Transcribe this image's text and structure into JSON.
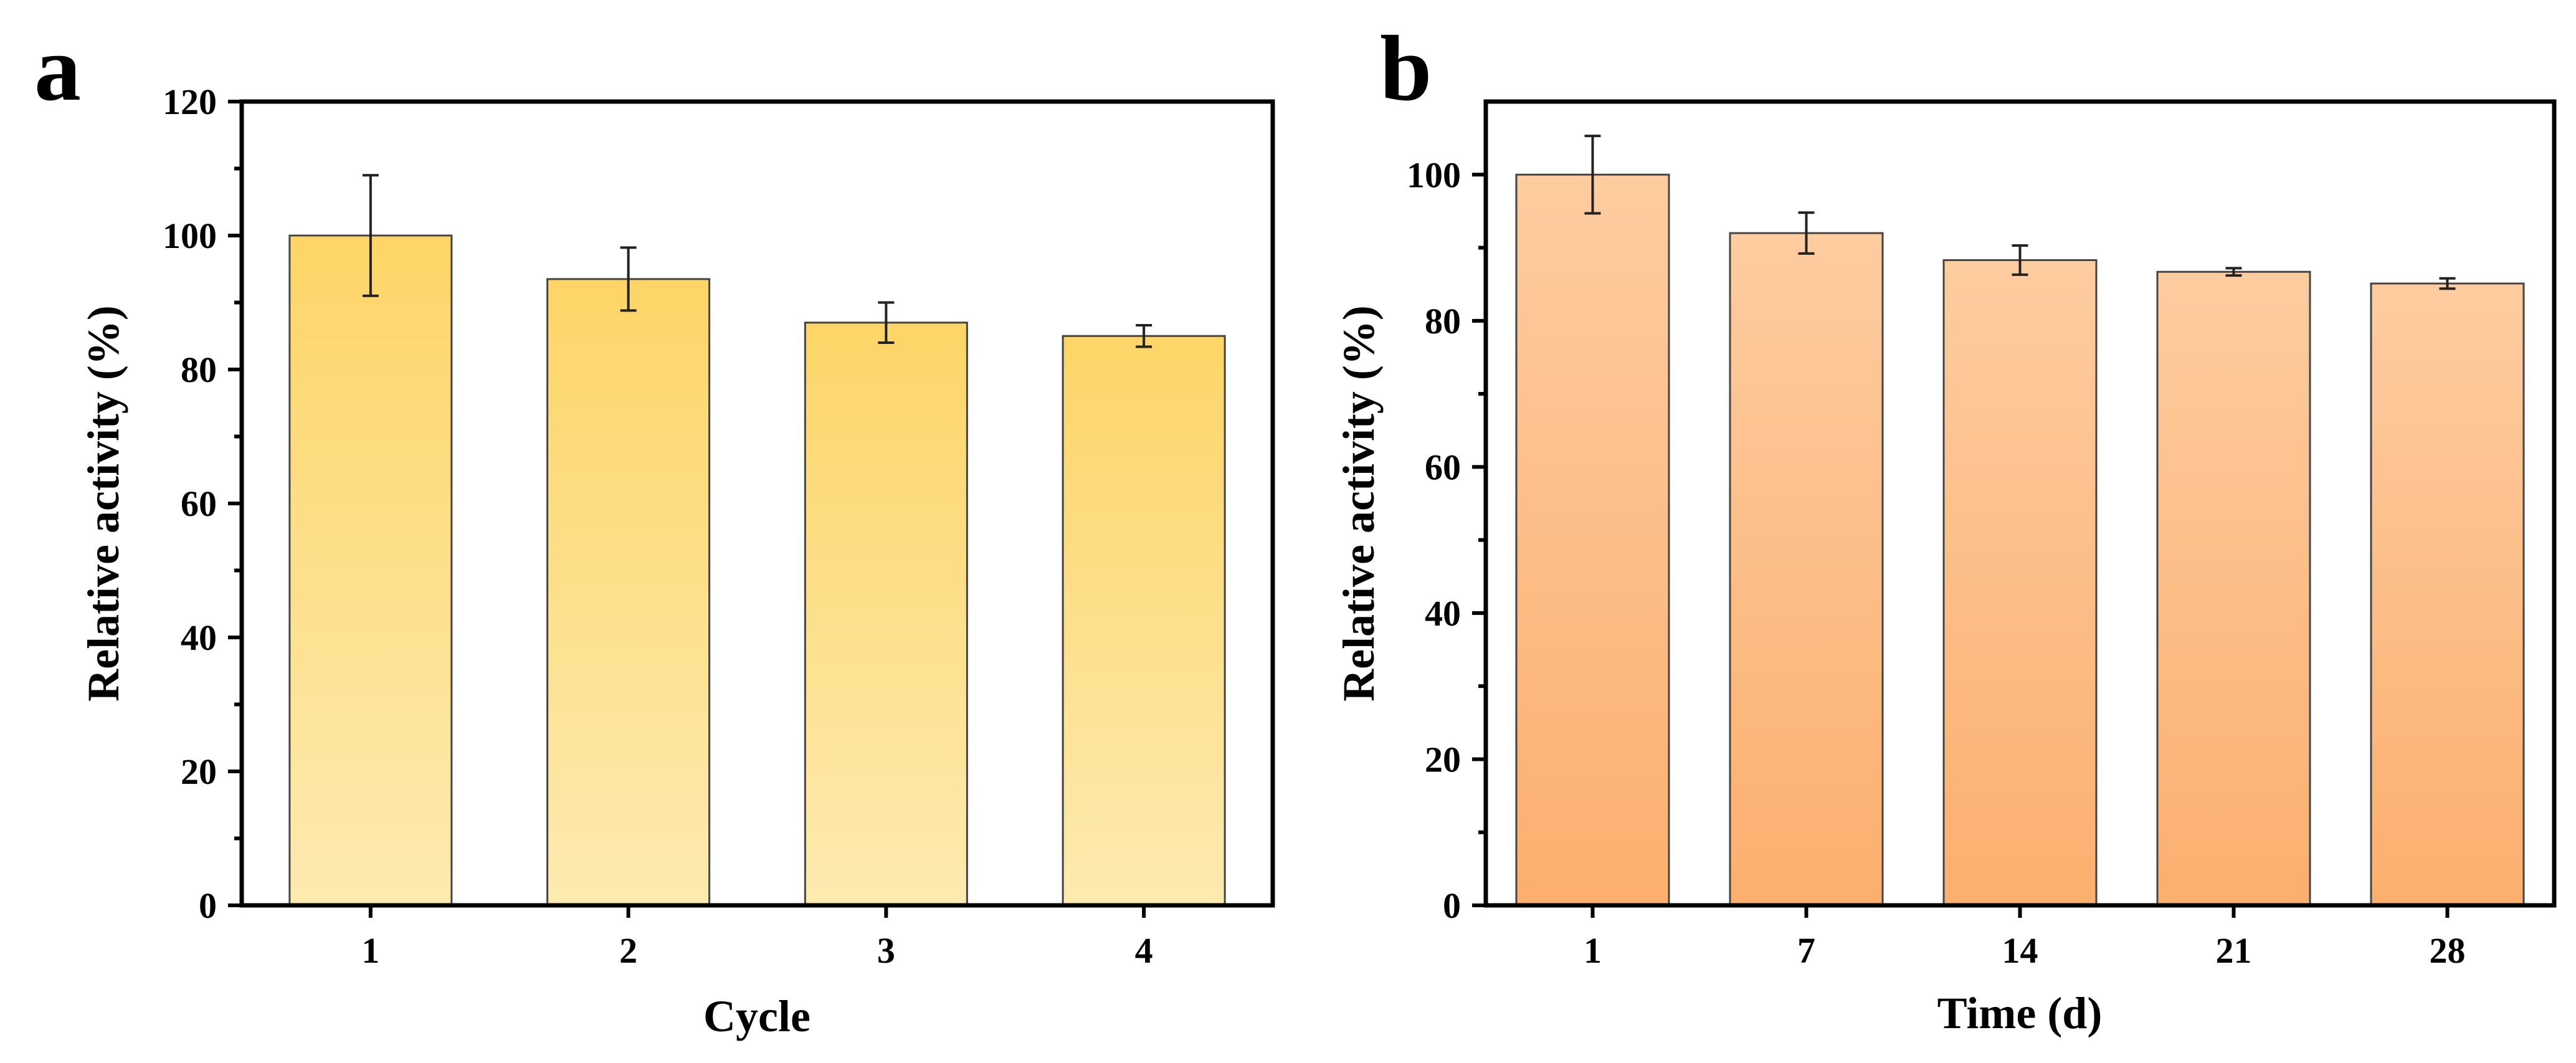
{
  "chart_data": [
    {
      "panel": "a",
      "type": "bar",
      "categories": [
        "1",
        "2",
        "3",
        "4"
      ],
      "values": [
        100,
        93.5,
        87,
        85
      ],
      "errors": [
        9,
        4.7,
        3,
        1.6
      ],
      "xlabel": "Cycle",
      "ylabel": "Relative activity (%)",
      "ylim": [
        0,
        120
      ],
      "yticks": [
        0,
        20,
        40,
        60,
        80,
        100,
        120
      ],
      "grid": false,
      "color_top": "#fdd567",
      "color_bottom": "#fdeab0"
    },
    {
      "panel": "b",
      "type": "bar",
      "categories": [
        "1",
        "7",
        "14",
        "21",
        "28"
      ],
      "values": [
        100,
        92,
        88.3,
        86.7,
        85.1
      ],
      "errors": [
        5.3,
        2.8,
        2.0,
        0.5,
        0.7
      ],
      "xlabel": "Time (d)",
      "ylabel": "Relative activity (%)",
      "ylim": [
        0,
        110
      ],
      "yticks": [
        0,
        20,
        40,
        60,
        80,
        100
      ],
      "grid": false,
      "color_top": "#fdcca0",
      "color_bottom": "#fcaf6e"
    }
  ]
}
